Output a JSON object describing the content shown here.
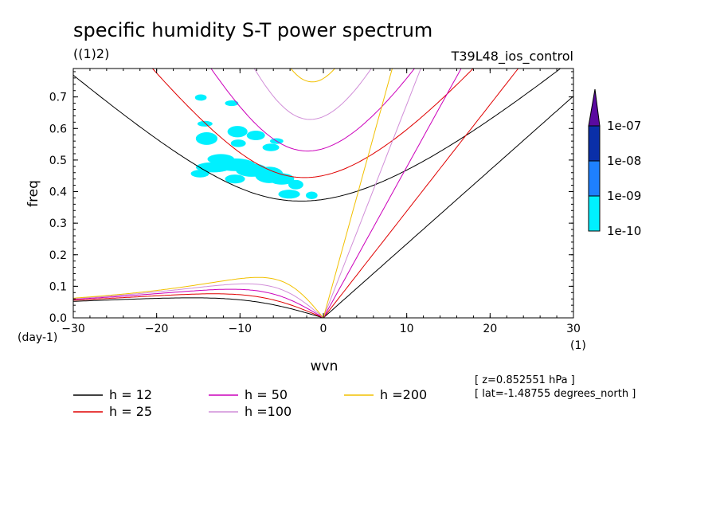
{
  "chart_data": {
    "type": "heatmap",
    "title": "specific humidity S-T power spectrum",
    "subtitle": "((1)2)",
    "run_label": "T39L48_ios_control",
    "xlabel": "wvn",
    "ylabel": "freq",
    "x_unit": "(1)",
    "y_unit": "(day-1)",
    "xlim": [
      -30,
      30
    ],
    "ylim": [
      0,
      0.79
    ],
    "x_ticks": [
      "−30",
      "−20",
      "−10",
      "0",
      "10",
      "20",
      "30"
    ],
    "x_tick_values": [
      -30,
      -20,
      -10,
      0,
      10,
      20,
      30
    ],
    "y_ticks": [
      "0.0",
      "0.1",
      "0.2",
      "0.3",
      "0.4",
      "0.5",
      "0.6",
      "0.7"
    ],
    "y_tick_values": [
      0,
      0.1,
      0.2,
      0.3,
      0.4,
      0.5,
      0.6,
      0.7
    ],
    "colorbar": {
      "labels": [
        "1e-07",
        "1e-08",
        "1e-09",
        "1e-10"
      ],
      "colors": [
        "#5a0aa0",
        "#0a2fa8",
        "#1e80ff",
        "#00f0ff"
      ]
    },
    "filled_patches": [
      {
        "color": "#00f0ff",
        "x": -14.8,
        "y": 0.457,
        "rx": 1.1,
        "ry": 0.012
      },
      {
        "color": "#00f0ff",
        "x": -13.2,
        "y": 0.477,
        "rx": 2.1,
        "ry": 0.016
      },
      {
        "color": "#00f0ff",
        "x": -10.6,
        "y": 0.485,
        "rx": 2.4,
        "ry": 0.02
      },
      {
        "color": "#00f0ff",
        "x": -8.6,
        "y": 0.468,
        "rx": 1.9,
        "ry": 0.021
      },
      {
        "color": "#00f0ff",
        "x": -10.6,
        "y": 0.44,
        "rx": 1.2,
        "ry": 0.014
      },
      {
        "color": "#00f0ff",
        "x": -6.5,
        "y": 0.453,
        "rx": 1.7,
        "ry": 0.026
      },
      {
        "color": "#00f0ff",
        "x": -5.0,
        "y": 0.44,
        "rx": 1.5,
        "ry": 0.018
      },
      {
        "color": "#00f0ff",
        "x": -3.3,
        "y": 0.422,
        "rx": 0.9,
        "ry": 0.015
      },
      {
        "color": "#00f0ff",
        "x": -4.1,
        "y": 0.392,
        "rx": 1.3,
        "ry": 0.014
      },
      {
        "color": "#00f0ff",
        "x": -1.4,
        "y": 0.388,
        "rx": 0.7,
        "ry": 0.012
      },
      {
        "color": "#00f0ff",
        "x": -12.3,
        "y": 0.503,
        "rx": 1.6,
        "ry": 0.016
      },
      {
        "color": "#00f0ff",
        "x": -14.0,
        "y": 0.568,
        "rx": 1.3,
        "ry": 0.02
      },
      {
        "color": "#00f0ff",
        "x": -10.3,
        "y": 0.59,
        "rx": 1.2,
        "ry": 0.018
      },
      {
        "color": "#00f0ff",
        "x": -8.1,
        "y": 0.578,
        "rx": 1.1,
        "ry": 0.015
      },
      {
        "color": "#00f0ff",
        "x": -10.2,
        "y": 0.553,
        "rx": 0.9,
        "ry": 0.012
      },
      {
        "color": "#00f0ff",
        "x": -14.2,
        "y": 0.615,
        "rx": 0.9,
        "ry": 0.009
      },
      {
        "color": "#00f0ff",
        "x": -11.0,
        "y": 0.68,
        "rx": 0.8,
        "ry": 0.009
      },
      {
        "color": "#00f0ff",
        "x": -14.7,
        "y": 0.698,
        "rx": 0.7,
        "ry": 0.01
      },
      {
        "color": "#00f0ff",
        "x": -6.3,
        "y": 0.54,
        "rx": 1.0,
        "ry": 0.012
      },
      {
        "color": "#00f0ff",
        "x": -5.6,
        "y": 0.56,
        "rx": 0.8,
        "ry": 0.009
      }
    ],
    "series": [
      {
        "name": "h = 12",
        "h": 12,
        "color": "#000000"
      },
      {
        "name": "h = 25",
        "h": 25,
        "color": "#e00000"
      },
      {
        "name": "h = 50",
        "h": 50,
        "color": "#cc00bb"
      },
      {
        "name": "h =100",
        "h": 100,
        "color": "#d18ed8"
      },
      {
        "name": "h =200",
        "h": 200,
        "color": "#f2c000"
      }
    ]
  },
  "info": {
    "z": "[ z=0.852551 hPa ]",
    "lat": "[ lat=-1.48755 degrees_north ]"
  }
}
